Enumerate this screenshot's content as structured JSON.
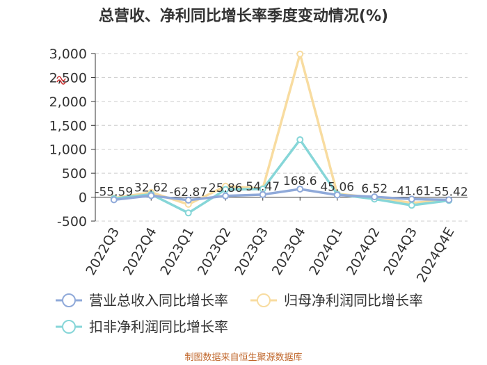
{
  "chart_data": {
    "type": "line",
    "title": "总营收、净利同比增长率季度变动情况(%)",
    "categories": [
      "2022Q3",
      "2022Q4",
      "2023Q1",
      "2023Q2",
      "2023Q3",
      "2023Q4",
      "2024Q1",
      "2024Q2",
      "2024Q3",
      "2024Q4E"
    ],
    "ylim": [
      -500,
      3000
    ],
    "yticks": [
      -500,
      0,
      500,
      1000,
      1500,
      2000,
      2500,
      3000
    ],
    "ytick_labels": [
      "-500",
      "0",
      "500",
      "1,000",
      "1,500",
      "2,000",
      "2,500",
      "3,000"
    ],
    "grid": true,
    "legend_position": "bottom",
    "series": [
      {
        "name": "营业总收入同比增长率",
        "color": "#8fa9d9",
        "values": [
          -55.59,
          32.62,
          -62.87,
          25.86,
          54.47,
          168.6,
          45.06,
          6.52,
          -41.61,
          -55.42
        ],
        "labels": [
          "-55.59",
          "32.62",
          "-62.87",
          "25.86",
          "54.47",
          "168.6",
          "45.06",
          "6.52",
          "-41.61",
          "-55.42"
        ]
      },
      {
        "name": "归母净利润同比增长率",
        "color": "#f8dca0",
        "values": [
          -20,
          100,
          -150,
          230,
          180,
          2990,
          70,
          -10,
          -120,
          -60
        ]
      },
      {
        "name": "扣非净利润同比增长率",
        "color": "#86d6d8",
        "values": [
          -30,
          60,
          -330,
          160,
          170,
          1200,
          60,
          -40,
          -170,
          -70
        ]
      }
    ]
  },
  "source": "制图数据来自恒生聚源数据库"
}
